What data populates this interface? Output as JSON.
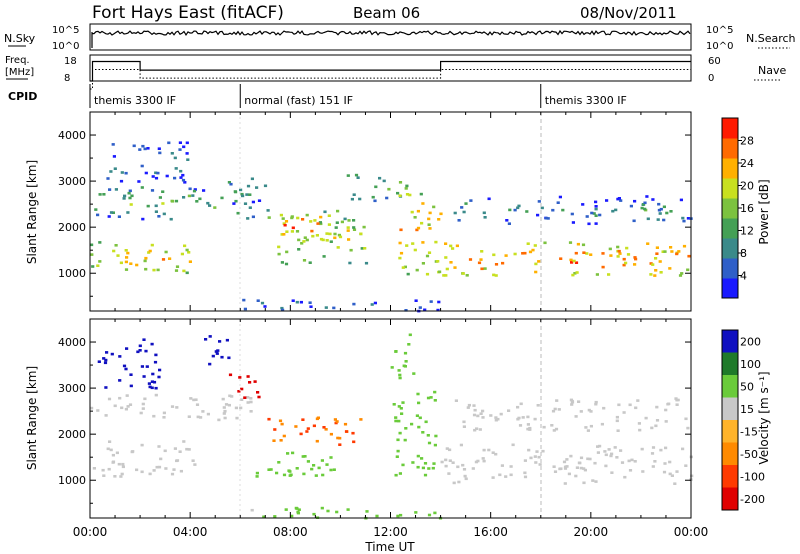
{
  "header": {
    "title": "Fort Hays East (fitACF)",
    "beam": "Beam 06",
    "date": "08/Nov/2011"
  },
  "noise_panel": {
    "left_label": "N.Sky",
    "right_label": "N.Search",
    "left_ticks": [
      "10^5",
      "10^0"
    ],
    "right_ticks": [
      "10^5",
      "10^0"
    ]
  },
  "freq_panel": {
    "left_label_1": "Freq.",
    "left_label_2": "[MHz]",
    "right_label": "Nave",
    "left_ticks": [
      "18",
      "8"
    ],
    "right_ticks": [
      "60",
      "0"
    ],
    "freq_steps": [
      {
        "from_hour": 0,
        "to_hour": 0.1,
        "mhz": 8
      },
      {
        "from_hour": 0.1,
        "to_hour": 2.0,
        "mhz": 15.5
      },
      {
        "from_hour": 2.0,
        "to_hour": 14.0,
        "mhz": 12.2
      },
      {
        "from_hour": 14.0,
        "to_hour": 24.0,
        "mhz": 15.5
      }
    ]
  },
  "cpid": {
    "label": "CPID",
    "segments": [
      {
        "start_hour": 0,
        "text": "themis 3300 IF"
      },
      {
        "start_hour": 6,
        "text": "normal (fast) 151 IF"
      },
      {
        "start_hour": 18,
        "text": "themis 3300 IF"
      }
    ]
  },
  "chart_data": [
    {
      "type": "heatmap",
      "name": "power",
      "ylabel": "Slant Range [km]",
      "xlabel": "Time UT",
      "x_ticks": [
        "00:00",
        "04:00",
        "08:00",
        "12:00",
        "16:00",
        "20:00",
        "00:00"
      ],
      "y_ticks": [
        1000,
        2000,
        3000,
        4000
      ],
      "ylim": [
        180,
        4500
      ],
      "xlim_hours": [
        0,
        24
      ],
      "colorbar": {
        "label": "Power [dB]",
        "ticks": [
          4,
          8,
          12,
          16,
          20,
          24,
          28
        ],
        "range": [
          0,
          32
        ],
        "colors": [
          "#1a1aff",
          "#2f5fc8",
          "#3a8a8a",
          "#44a055",
          "#7cc23f",
          "#c8e020",
          "#ffb000",
          "#ff6a00",
          "#ff1a00"
        ]
      },
      "regions": [
        {
          "t0": 0.0,
          "t1": 4.2,
          "r0": 1000,
          "r1": 1700,
          "level": 22
        },
        {
          "t0": 0.0,
          "t1": 6.5,
          "r0": 2200,
          "r1": 2900,
          "level": 14
        },
        {
          "t0": 0.5,
          "t1": 4.0,
          "r0": 3000,
          "r1": 3900,
          "level": 9
        },
        {
          "t0": 5.5,
          "t1": 7.0,
          "r0": 2500,
          "r1": 3100,
          "level": 13
        },
        {
          "t0": 7.0,
          "t1": 11.0,
          "r0": 1200,
          "r1": 2400,
          "level": 20
        },
        {
          "t0": 7.5,
          "t1": 9.5,
          "r0": 1700,
          "r1": 2300,
          "level": 28
        },
        {
          "t0": 10.2,
          "t1": 12.6,
          "r0": 2600,
          "r1": 3200,
          "level": 16
        },
        {
          "t0": 12.3,
          "t1": 14.0,
          "r0": 950,
          "r1": 2800,
          "level": 24
        },
        {
          "t0": 14.0,
          "t1": 24.0,
          "r0": 950,
          "r1": 1700,
          "level": 26
        },
        {
          "t0": 14.5,
          "t1": 24.0,
          "r0": 2100,
          "r1": 2700,
          "level": 10
        },
        {
          "t0": 6.0,
          "t1": 14.0,
          "r0": 200,
          "r1": 450,
          "level": 8
        }
      ]
    },
    {
      "type": "heatmap",
      "name": "velocity",
      "ylabel": "Slant Range [km]",
      "xlabel": "Time UT",
      "x_ticks": [
        "00:00",
        "04:00",
        "08:00",
        "12:00",
        "16:00",
        "20:00",
        "00:00"
      ],
      "y_ticks": [
        1000,
        2000,
        3000,
        4000
      ],
      "ylim": [
        180,
        4500
      ],
      "xlim_hours": [
        0,
        24
      ],
      "colorbar": {
        "label": "Velocity [m s⁻¹]",
        "ticks": [
          200,
          100,
          50,
          15,
          -15,
          -50,
          -100,
          -200
        ],
        "colors": [
          "#1010c0",
          "#1f7a2a",
          "#6acb3a",
          "#c8c8c8",
          "#ffb32a",
          "#ff8a00",
          "#ff3a00",
          "#e00000"
        ]
      },
      "regions": [
        {
          "t0": 0.0,
          "t1": 4.2,
          "r0": 1100,
          "r1": 1900,
          "level": 0
        },
        {
          "t0": 0.0,
          "t1": 6.5,
          "r0": 2300,
          "r1": 2900,
          "level": 0
        },
        {
          "t0": 0.3,
          "t1": 2.8,
          "r0": 3000,
          "r1": 4100,
          "level": 200
        },
        {
          "t0": 5.4,
          "t1": 6.9,
          "r0": 2800,
          "r1": 3350,
          "level": -200
        },
        {
          "t0": 4.5,
          "t1": 5.8,
          "r0": 3500,
          "r1": 4200,
          "level": 200
        },
        {
          "t0": 7.0,
          "t1": 10.8,
          "r0": 1750,
          "r1": 2400,
          "level": -70
        },
        {
          "t0": 6.0,
          "t1": 10.0,
          "r0": 1100,
          "r1": 1650,
          "level": 50
        },
        {
          "t0": 12.0,
          "t1": 13.8,
          "r0": 1100,
          "r1": 3000,
          "level": 45
        },
        {
          "t0": 12.0,
          "t1": 13.0,
          "r0": 3200,
          "r1": 4200,
          "level": 50
        },
        {
          "t0": 13.8,
          "t1": 24.0,
          "r0": 950,
          "r1": 1800,
          "level": 0
        },
        {
          "t0": 14.5,
          "t1": 24.0,
          "r0": 2100,
          "r1": 2800,
          "level": 0
        },
        {
          "t0": 6.0,
          "t1": 14.0,
          "r0": 200,
          "r1": 450,
          "level": 40
        }
      ]
    }
  ]
}
